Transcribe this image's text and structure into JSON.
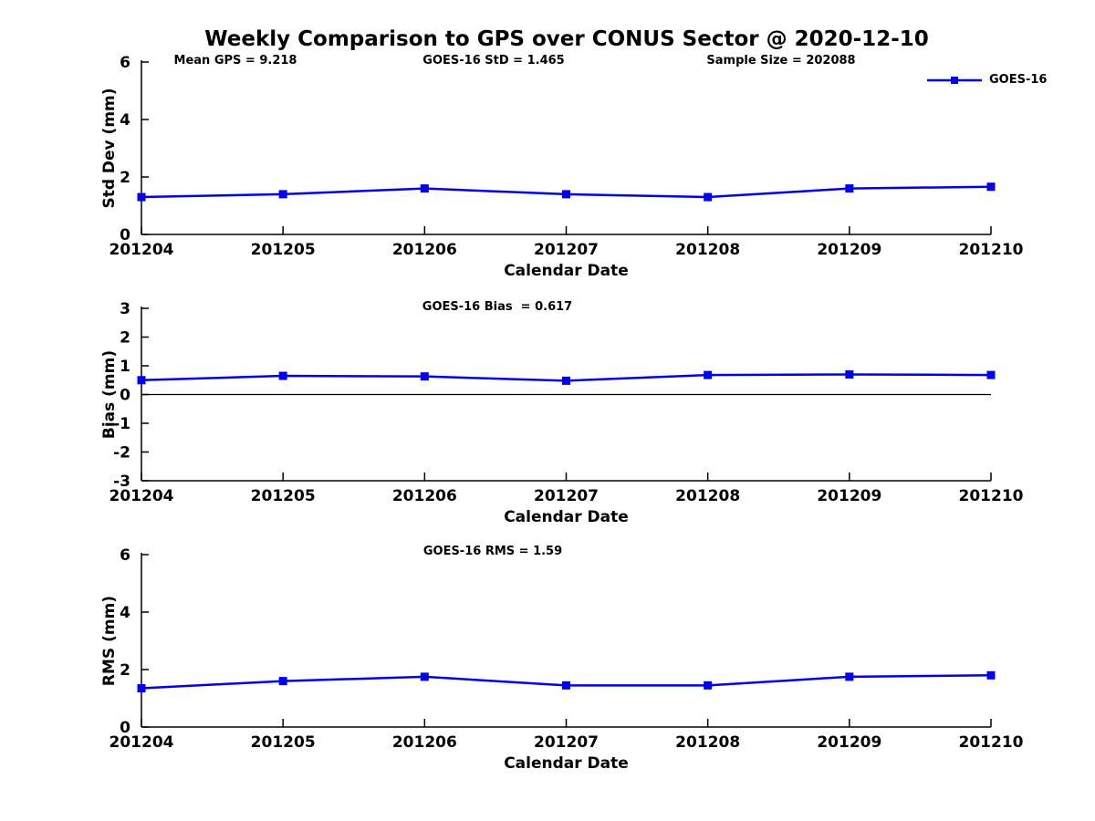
{
  "figure": {
    "title": "Weekly Comparison to GPS over CONUS Sector @ 2020-12-10",
    "background": "#ffffff"
  },
  "header_annotations": {
    "mean_gps": "Mean GPS = 9.218",
    "goes16_std": "GOES-16 StD = 1.465",
    "sample_size": "Sample Size = 202088"
  },
  "legend": {
    "label": "GOES-16",
    "color": "#0000EE",
    "marker": "square"
  },
  "colors": {
    "line": "#0000EE",
    "axis": "#000000",
    "text": "#000000",
    "background": "#ffffff"
  },
  "chart_data": [
    {
      "type": "line",
      "name": "std-dev",
      "annotation": "",
      "categories": [
        "201204",
        "201205",
        "201206",
        "201207",
        "201208",
        "201209",
        "201210"
      ],
      "series": [
        {
          "name": "GOES-16",
          "color": "#0000EE",
          "values": [
            1.3,
            1.4,
            1.6,
            1.4,
            1.3,
            1.6,
            1.66
          ]
        }
      ],
      "xlabel": "Calendar Date",
      "ylabel": "Std Dev (mm)",
      "ylim": [
        0,
        6
      ],
      "yticks": [
        0,
        2,
        4,
        6
      ],
      "zero_line": false,
      "grid": false,
      "legend_position": "top-right"
    },
    {
      "type": "line",
      "name": "bias",
      "annotation": "GOES-16 Bias  = 0.617",
      "categories": [
        "201204",
        "201205",
        "201206",
        "201207",
        "201208",
        "201209",
        "201210"
      ],
      "series": [
        {
          "name": "GOES-16",
          "color": "#0000EE",
          "values": [
            0.5,
            0.65,
            0.63,
            0.48,
            0.68,
            0.7,
            0.68
          ]
        }
      ],
      "xlabel": "Calendar Date",
      "ylabel": "Bias (mm)",
      "ylim": [
        -3,
        3
      ],
      "yticks": [
        -3,
        -2,
        -1,
        0,
        1,
        2,
        3
      ],
      "zero_line": true,
      "grid": false,
      "legend_position": "none"
    },
    {
      "type": "line",
      "name": "rms",
      "annotation": "GOES-16 RMS = 1.59",
      "categories": [
        "201204",
        "201205",
        "201206",
        "201207",
        "201208",
        "201209",
        "201210"
      ],
      "series": [
        {
          "name": "GOES-16",
          "color": "#0000EE",
          "values": [
            1.35,
            1.6,
            1.75,
            1.45,
            1.45,
            1.75,
            1.8
          ]
        }
      ],
      "xlabel": "Calendar Date",
      "ylabel": "RMS (mm)",
      "ylim": [
        0,
        6
      ],
      "yticks": [
        0,
        2,
        4,
        6
      ],
      "zero_line": false,
      "grid": false,
      "legend_position": "none"
    }
  ]
}
